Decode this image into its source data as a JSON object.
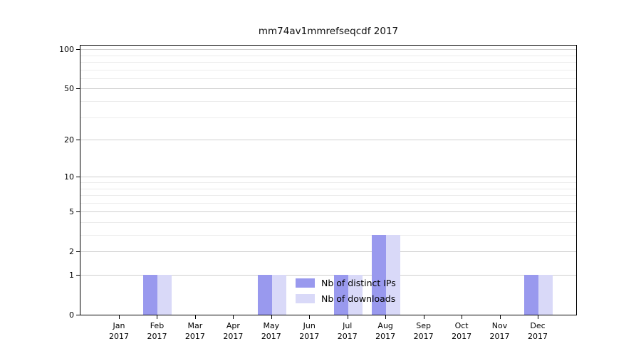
{
  "title": "mm74av1mmrefseqcdf 2017",
  "chart_data": {
    "type": "bar",
    "title": "mm74av1mmrefseqcdf 2017",
    "categories": [
      "Jan",
      "Feb",
      "Mar",
      "Apr",
      "May",
      "Jun",
      "Jul",
      "Aug",
      "Sep",
      "Oct",
      "Nov",
      "Dec"
    ],
    "category_year": "2017",
    "series": [
      {
        "name": "Nb of distinct IPs",
        "color": "#9999ee",
        "values": [
          0,
          1,
          0,
          0,
          1,
          0,
          1,
          3,
          0,
          0,
          0,
          1
        ]
      },
      {
        "name": "Nb of downloads",
        "color": "#d9d9f8",
        "values": [
          0,
          1,
          0,
          0,
          1,
          0,
          1,
          3,
          0,
          0,
          0,
          1
        ]
      }
    ],
    "yticks": [
      0,
      1,
      2,
      5,
      10,
      20,
      50,
      100
    ],
    "ylim": [
      0,
      100
    ],
    "yscale": "log1p",
    "grid": true,
    "legend_position": "bottom-center"
  }
}
